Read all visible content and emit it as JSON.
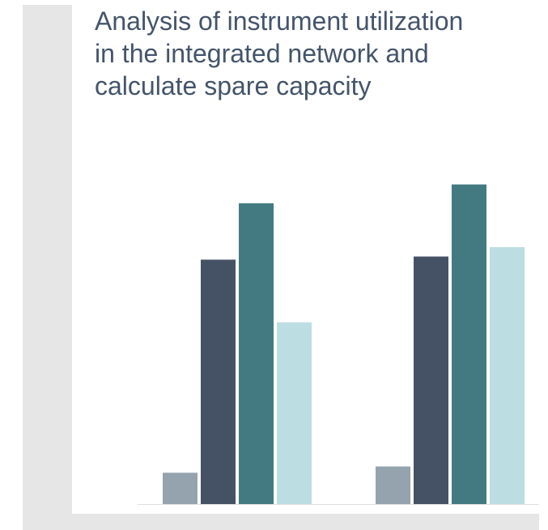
{
  "title": "Analysis of instrument utilization in the integrated network and calculate spare capacity",
  "chart_data": {
    "type": "bar",
    "title": "Analysis of instrument utilization in the integrated network and calculate spare capacity",
    "categories": [
      "",
      ""
    ],
    "series": [
      {
        "values": [
          10,
          12
        ],
        "color": "#94a3ad"
      },
      {
        "values": [
          78,
          79
        ],
        "color": "#455266"
      },
      {
        "values": [
          96,
          102
        ],
        "color": "#437a81"
      },
      {
        "values": [
          58,
          82
        ],
        "color": "#bcdde1"
      }
    ],
    "xlabel": "",
    "ylabel": "",
    "ylim": [
      0,
      105
    ],
    "grid": false,
    "legend": "none",
    "axis_color": "#e0e0e0"
  }
}
